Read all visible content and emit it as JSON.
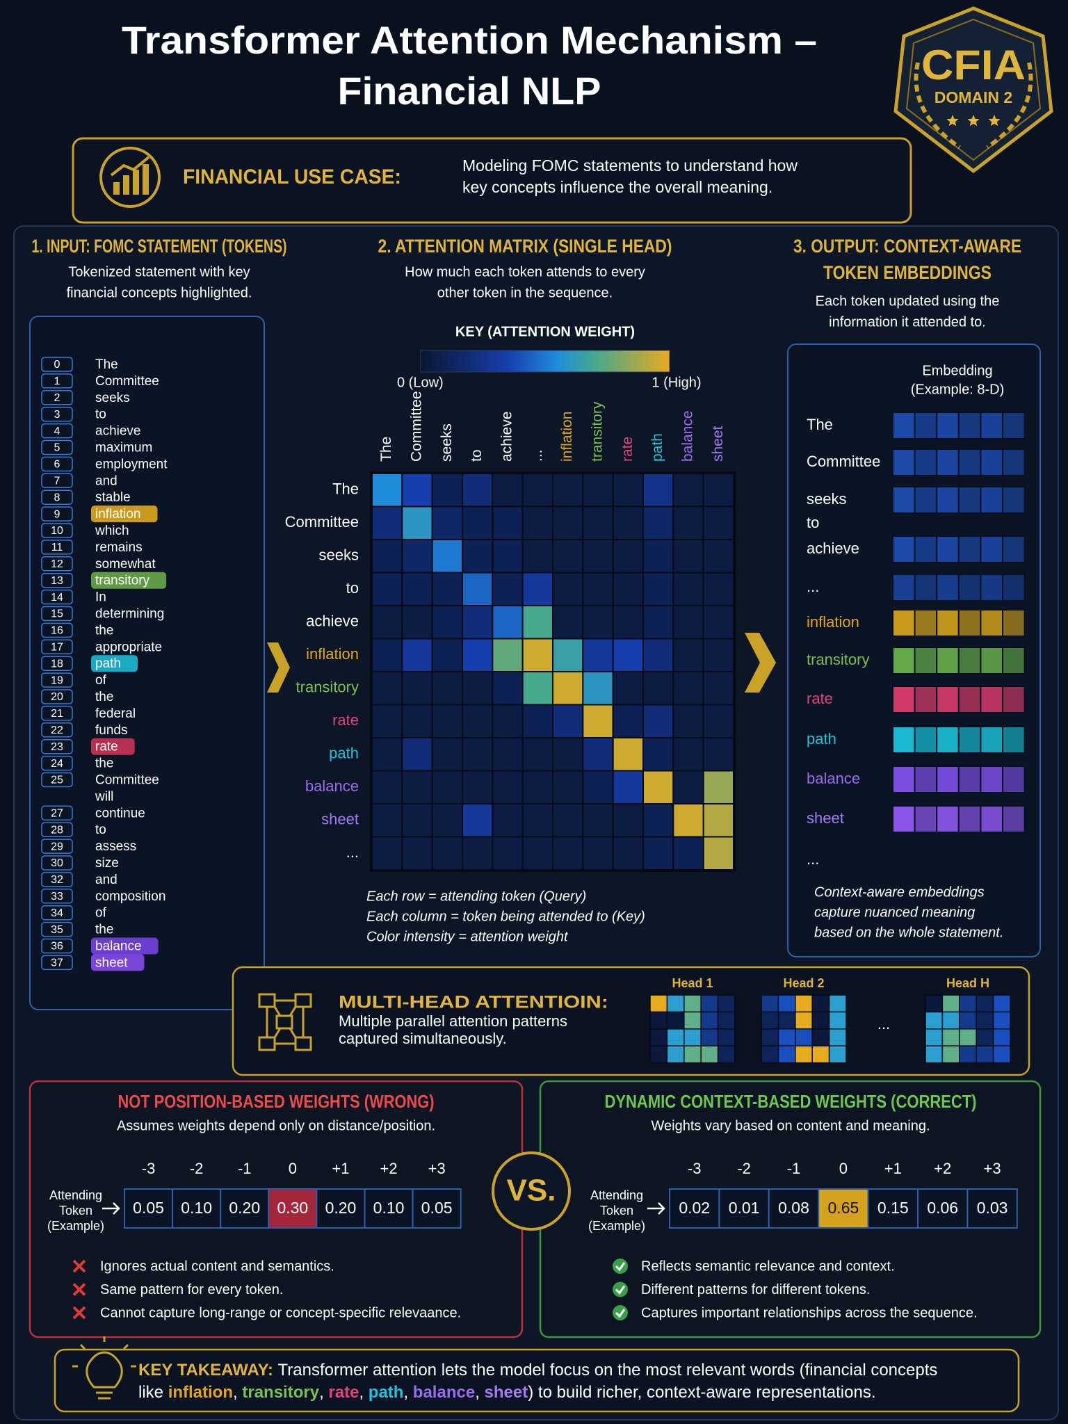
{
  "header": {
    "title": [
      "Transformer Attention Mechanism –",
      "Financial NLP"
    ],
    "badge": {
      "name": "CFIA",
      "domain": "DOMAIN 2"
    }
  },
  "use_case": {
    "label": "FINANCIAL USE CASE:",
    "text": [
      "Modeling FOMC statements to understand how",
      "key concepts influence the overall meaning."
    ]
  },
  "input": {
    "title": "1. INPUT: FOMC STATEMENT (TOKENS)",
    "subtitle": [
      "Tokenized statement with key",
      "financial concepts highlighted."
    ],
    "tokens": [
      {
        "id": "0",
        "text": "The"
      },
      {
        "id": "1",
        "text": "Committee"
      },
      {
        "id": "2",
        "text": "seeks"
      },
      {
        "id": "3",
        "text": "to"
      },
      {
        "id": "4",
        "text": "achieve"
      },
      {
        "id": "5",
        "text": "maximum"
      },
      {
        "id": "6",
        "text": "employment"
      },
      {
        "id": "7",
        "text": "and"
      },
      {
        "id": "8",
        "text": "stable"
      },
      {
        "id": "9",
        "text": "inflation",
        "color": "#c99a1c"
      },
      {
        "id": "10",
        "text": "which"
      },
      {
        "id": "11",
        "text": "remains"
      },
      {
        "id": "12",
        "text": "somewhat"
      },
      {
        "id": "13",
        "text": "transitory",
        "color": "#5f9a45"
      },
      {
        "id": "14",
        "text": "In"
      },
      {
        "id": "15",
        "text": "determining"
      },
      {
        "id": "16",
        "text": "the"
      },
      {
        "id": "17",
        "text": "appropriate"
      },
      {
        "id": "18",
        "text": "path",
        "color": "#1aa9c2"
      },
      {
        "id": "19",
        "text": "of"
      },
      {
        "id": "20",
        "text": "the"
      },
      {
        "id": "21",
        "text": "federal"
      },
      {
        "id": "22",
        "text": "funds"
      },
      {
        "id": "23",
        "text": "rate",
        "color": "#b8304f"
      },
      {
        "id": "24",
        "text": "the"
      },
      {
        "id": "25",
        "text": "Committee"
      },
      {
        "text": "will"
      },
      {
        "id": "27",
        "text": "continue"
      },
      {
        "id": "28",
        "text": "to"
      },
      {
        "id": "29",
        "text": "assess"
      },
      {
        "id": "30",
        "text": "size"
      },
      {
        "id": "32",
        "text": "and"
      },
      {
        "id": "33",
        "text": "composition"
      },
      {
        "id": "34",
        "text": "of"
      },
      {
        "id": "35",
        "text": "the"
      },
      {
        "id": "36",
        "text": "balance",
        "color": "#6a3fd0"
      },
      {
        "id": "37",
        "text": "sheet",
        "color": "#7a45da"
      }
    ]
  },
  "matrix": {
    "title": "2. ATTENTION MATRIX (SINGLE HEAD)",
    "subtitle": [
      "How much each token attends to every",
      "other token in the sequence."
    ],
    "key_label": "KEY (ATTENTION WEIGHT)",
    "low": "0 (Low)",
    "high": "1 (High)",
    "columns": [
      {
        "text": "The"
      },
      {
        "text": "Committee"
      },
      {
        "text": "seeks"
      },
      {
        "text": "to"
      },
      {
        "text": "achieve"
      },
      {
        "text": "..."
      },
      {
        "text": "inflation",
        "color": "#e0a820"
      },
      {
        "text": "transitory",
        "color": "#7bbf55"
      },
      {
        "text": "rate",
        "color": "#e0457a"
      },
      {
        "text": "path",
        "color": "#22c3dc"
      },
      {
        "text": "balance",
        "color": "#9a6cf0"
      },
      {
        "text": "sheet",
        "color": "#a57cf5"
      }
    ],
    "rows": [
      {
        "text": "The"
      },
      {
        "text": "Committee"
      },
      {
        "text": "seeks"
      },
      {
        "text": "to"
      },
      {
        "text": "achieve"
      },
      {
        "text": "inflation",
        "color": "#e0a820"
      },
      {
        "text": "transitory",
        "color": "#7bbf55"
      },
      {
        "text": "rate",
        "color": "#e0457a"
      },
      {
        "text": "path",
        "color": "#22c3dc"
      },
      {
        "text": "balance",
        "color": "#9a6cf0"
      },
      {
        "text": "sheet",
        "color": "#a57cf5"
      },
      {
        "text": "..."
      }
    ],
    "weights": [
      [
        0.55,
        0.35,
        0.1,
        0.2,
        0.05,
        0.05,
        0.05,
        0.05,
        0.05,
        0.25,
        0.05,
        0.05
      ],
      [
        0.2,
        0.6,
        0.15,
        0.1,
        0.1,
        0.05,
        0.05,
        0.05,
        0.05,
        0.15,
        0.05,
        0.05
      ],
      [
        0.1,
        0.15,
        0.5,
        0.1,
        0.1,
        0.05,
        0.05,
        0.05,
        0.05,
        0.1,
        0.05,
        0.05
      ],
      [
        0.1,
        0.1,
        0.1,
        0.45,
        0.1,
        0.3,
        0.05,
        0.05,
        0.05,
        0.1,
        0.05,
        0.05
      ],
      [
        0.05,
        0.05,
        0.1,
        0.2,
        0.45,
        0.7,
        0.05,
        0.05,
        0.05,
        0.1,
        0.05,
        0.05
      ],
      [
        0.1,
        0.3,
        0.1,
        0.35,
        0.75,
        0.95,
        0.65,
        0.3,
        0.35,
        0.2,
        0.05,
        0.05
      ],
      [
        0.05,
        0.05,
        0.05,
        0.05,
        0.1,
        0.7,
        0.95,
        0.6,
        0.05,
        0.05,
        0.05,
        0.05
      ],
      [
        0.05,
        0.05,
        0.05,
        0.05,
        0.05,
        0.1,
        0.2,
        0.95,
        0.1,
        0.2,
        0.05,
        0.05
      ],
      [
        0.05,
        0.2,
        0.05,
        0.05,
        0.05,
        0.05,
        0.05,
        0.2,
        0.95,
        0.1,
        0.05,
        0.05
      ],
      [
        0.05,
        0.05,
        0.05,
        0.05,
        0.05,
        0.05,
        0.05,
        0.1,
        0.3,
        0.95,
        0.05,
        0.85
      ],
      [
        0.05,
        0.05,
        0.05,
        0.3,
        0.05,
        0.05,
        0.05,
        0.05,
        0.05,
        0.1,
        0.95,
        0.9
      ],
      [
        0.05,
        0.05,
        0.05,
        0.05,
        0.05,
        0.05,
        0.05,
        0.05,
        0.05,
        0.1,
        0.1,
        0.9
      ]
    ],
    "notes": [
      "Each row = attending token (Query)",
      "Each column = token being attended to (Key)",
      "Color intensity = attention weight"
    ]
  },
  "output": {
    "title": [
      "3. OUTPUT: CONTEXT-AWARE",
      "TOKEN EMBEDDINGS"
    ],
    "subtitle": [
      "Each token updated using the",
      "information it attended to."
    ],
    "embedding_label": [
      "Embedding",
      "(Example: 8-D)"
    ],
    "rows": [
      {
        "token": "The",
        "bar": "#1c48a8"
      },
      {
        "token": "Committee",
        "bar": "#1c48a8"
      },
      {
        "token": "seeks",
        "bar": "#1c48a8"
      },
      {
        "token": "to"
      },
      {
        "token": "achieve",
        "bar": "#1c48a8"
      },
      {
        "token": "...",
        "bar": "#183f94"
      },
      {
        "token": "inflation",
        "color": "#e0a820",
        "bar": "#c99a1c"
      },
      {
        "token": "transitory",
        "color": "#7bbf55",
        "bar": "#64a84a"
      },
      {
        "token": "rate",
        "color": "#e0457a",
        "bar": "#d23a6a"
      },
      {
        "token": "path",
        "color": "#22c3dc",
        "bar": "#19b8d0"
      },
      {
        "token": "balance",
        "color": "#9a6cf0",
        "bar": "#7b4de0"
      },
      {
        "token": "sheet",
        "color": "#a57cf5",
        "bar": "#8a55e8"
      },
      {
        "token": "..."
      }
    ],
    "notes": [
      "Context-aware embeddings",
      "capture nuanced meaning",
      "based on the whole statement."
    ]
  },
  "multihead": {
    "title": "MULTI-HEAD ATTENTIOIN:",
    "text": [
      "Multiple parallel attention patterns",
      "captured simultaneously."
    ],
    "heads": [
      "Head 1",
      "Head 2",
      "Head H"
    ],
    "ellipsis": "..."
  },
  "wrong": {
    "title": "NOT POSITION-BASED WEIGHTS (WRONG)",
    "subtitle": "Assumes weights depend only on distance/position.",
    "attending": [
      "Attending",
      "Token",
      "(Example)"
    ],
    "offsets": [
      "-3",
      "-2",
      "-1",
      "0",
      "+1",
      "+2",
      "+3"
    ],
    "weights": [
      "0.05",
      "0.10",
      "0.20",
      "0.30",
      "0.20",
      "0.10",
      "0.05"
    ],
    "highlight": 3,
    "bullets": [
      "Ignores actual content and semantics.",
      "Same pattern for every token.",
      "Cannot capture long-range or concept-specific relevaance."
    ]
  },
  "vs": "VS.",
  "correct": {
    "title": "DYNAMIC CONTEXT-BASED WEIGHTS (CORRECT)",
    "subtitle": "Weights vary based on content and meaning.",
    "attending": [
      "Attending",
      "Token",
      "(Example)"
    ],
    "offsets": [
      "-3",
      "-2",
      "-1",
      "0",
      "+1",
      "+2",
      "+3"
    ],
    "weights": [
      "0.02",
      "0.01",
      "0.08",
      "0.65",
      "0.15",
      "0.06",
      "0.03"
    ],
    "highlight": 3,
    "bullets": [
      "Reflects semantic relevance and context.",
      "Different patterns for different tokens.",
      "Captures important relationships across the sequence."
    ]
  },
  "takeaway": {
    "line1": [
      {
        "text": "KEY TAKEAWAY: ",
        "color": "#e0b53a"
      },
      {
        "text": "Transformer attention lets the model focus on the most relevant words (financial concepts"
      }
    ],
    "line2": [
      {
        "text": "like "
      },
      {
        "text": "inflation",
        "color": "#e0a820"
      },
      {
        "text": ", "
      },
      {
        "text": "transitory",
        "color": "#7bbf55"
      },
      {
        "text": ", "
      },
      {
        "text": "rate",
        "color": "#e0457a"
      },
      {
        "text": ", "
      },
      {
        "text": "path",
        "color": "#22c3dc"
      },
      {
        "text": ", "
      },
      {
        "text": "balance",
        "color": "#9a6cf0"
      },
      {
        "text": ", "
      },
      {
        "text": "sheet",
        "color": "#a57cf5"
      },
      {
        "text": ") to build richer, context-aware representations."
      }
    ]
  }
}
